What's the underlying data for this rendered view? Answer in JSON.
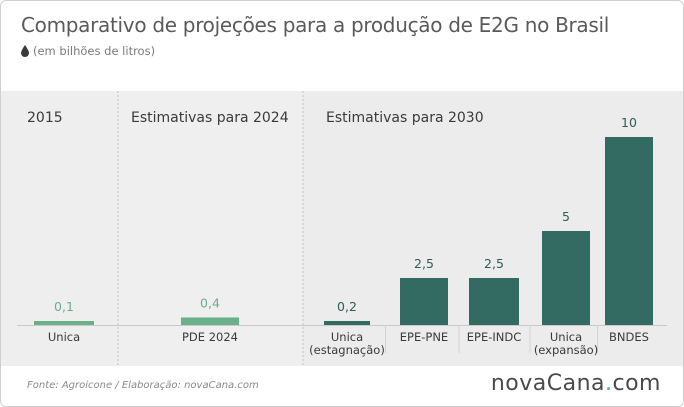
{
  "header": {
    "title": "Comparativo de projeções para a produção de E2G no Brasil",
    "subtitle": "(em bilhões de litros)"
  },
  "footer": {
    "source": "Fonte: Agroicone  / Elaboração:  novaCana.com",
    "logo_main": "novaCana",
    "logo_dot": ".",
    "logo_tld": "com"
  },
  "colors": {
    "light_bar": "#6cb08b",
    "dark_bar": "#336b63",
    "light_value": "#6cb08b",
    "dark_value": "#2f5d57"
  },
  "chart_data": {
    "type": "bar",
    "title": "Comparativo de projeções para a produção de E2G no Brasil",
    "ylabel": "(em bilhões de litros)",
    "ylim": [
      0,
      10
    ],
    "grid": false,
    "groups": [
      {
        "label": "2015",
        "categories": [
          "Unica"
        ],
        "values": [
          0.1
        ],
        "labels": [
          "0,1"
        ],
        "style": "light"
      },
      {
        "label": "Estimativas para 2024",
        "categories": [
          "PDE 2024"
        ],
        "values": [
          0.4
        ],
        "labels": [
          "0,4"
        ],
        "style": "light"
      },
      {
        "label": "Estimativas para 2030",
        "categories": [
          "Unica\n(estagnação)",
          "EPE-PNE",
          "EPE-INDC",
          "Unica\n(expansão)",
          "BNDES"
        ],
        "values": [
          0.2,
          2.5,
          2.5,
          5,
          10
        ],
        "labels": [
          "0,2",
          "2,5",
          "2,5",
          "5",
          "10"
        ],
        "style": "dark"
      }
    ]
  }
}
